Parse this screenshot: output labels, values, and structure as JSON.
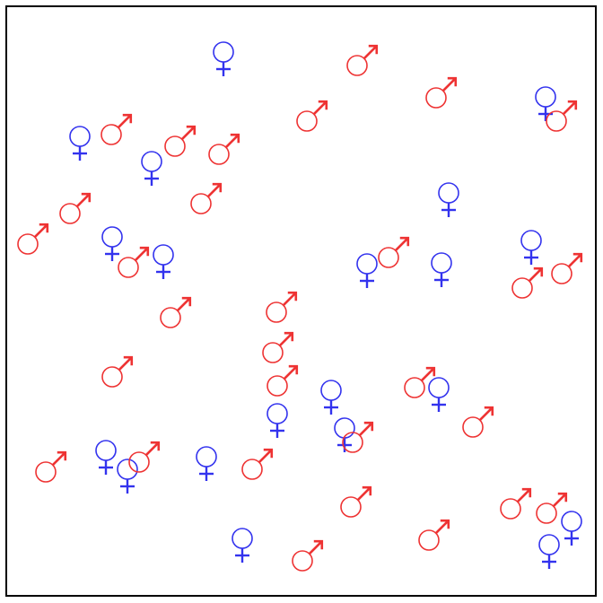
{
  "colors": {
    "male": "#ee3333",
    "female": "#3333ee",
    "frame": "#000000",
    "background": "#ffffff"
  },
  "legend_icons": {
    "male": "male-symbol-icon",
    "female": "female-symbol-icon"
  },
  "counts": {
    "male": 39,
    "female": 23
  }
}
